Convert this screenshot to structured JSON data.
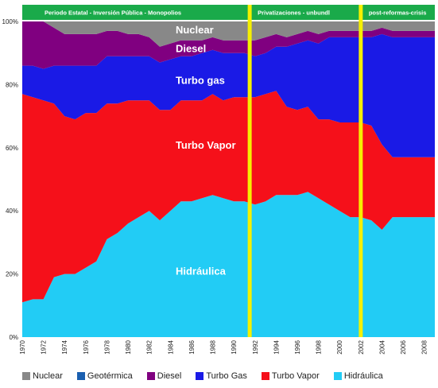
{
  "chart_data": {
    "type": "area",
    "stacked": true,
    "x": [
      1970,
      1971,
      1972,
      1973,
      1974,
      1975,
      1976,
      1977,
      1978,
      1979,
      1980,
      1981,
      1982,
      1983,
      1984,
      1985,
      1986,
      1987,
      1988,
      1989,
      1990,
      1991,
      1992,
      1993,
      1994,
      1995,
      1996,
      1997,
      1998,
      1999,
      2000,
      2001,
      2002,
      2003,
      2004,
      2005,
      2006,
      2007,
      2008,
      2009
    ],
    "x_tick_labels": [
      "1970",
      "1972",
      "1974",
      "1976",
      "1978",
      "1980",
      "1982",
      "1984",
      "1986",
      "1988",
      "1990",
      "1992",
      "1994",
      "1996",
      "1998",
      "2000",
      "2002",
      "2004",
      "2006",
      "2008"
    ],
    "x_tick_values": [
      1970,
      1972,
      1974,
      1976,
      1978,
      1980,
      1982,
      1984,
      1986,
      1988,
      1990,
      1992,
      1994,
      1996,
      1998,
      2000,
      2002,
      2004,
      2006,
      2008
    ],
    "xlim": [
      1970,
      2009
    ],
    "ylim": [
      0,
      100
    ],
    "y_tick_labels": [
      "0%",
      "20%",
      "40%",
      "60%",
      "80%",
      "100%"
    ],
    "y_tick_values": [
      0,
      20,
      40,
      60,
      80,
      100
    ],
    "series": [
      {
        "name": "Hidráulica",
        "color": "#22ccf5",
        "values": [
          11,
          12,
          12,
          19,
          20,
          20,
          22,
          24,
          31,
          33,
          36,
          38,
          40,
          37,
          40,
          43,
          43,
          44,
          45,
          44,
          43,
          43,
          42,
          43,
          45,
          45,
          45,
          46,
          44,
          42,
          40,
          38,
          38,
          37,
          34,
          38,
          38,
          38,
          38,
          38
        ]
      },
      {
        "name": "Turbo Vapor",
        "color": "#f5101a",
        "values": [
          66,
          64,
          63,
          55,
          50,
          49,
          49,
          47,
          43,
          41,
          39,
          37,
          35,
          35,
          32,
          32,
          32,
          31,
          32,
          31,
          33,
          33,
          34,
          34,
          33,
          28,
          27,
          27,
          25,
          27,
          28,
          30,
          30,
          30,
          27,
          19,
          19,
          19,
          19,
          19
        ]
      },
      {
        "name": "Turbo Gas",
        "color": "#1a1ae6",
        "values": [
          9,
          10,
          10,
          12,
          16,
          17,
          15,
          15,
          15,
          15,
          14,
          14,
          14,
          15,
          16,
          14,
          14,
          15,
          14,
          15,
          14,
          14,
          13,
          13,
          14,
          19,
          21,
          21,
          24,
          26,
          27,
          27,
          27,
          28,
          35,
          38,
          38,
          38,
          38,
          38
        ]
      },
      {
        "name": "Diesel",
        "color": "#800080",
        "values": [
          14,
          14,
          15,
          12,
          10,
          10,
          10,
          10,
          8,
          8,
          7,
          7,
          6,
          5,
          5,
          5,
          5,
          4,
          4,
          4,
          4,
          4,
          5,
          5,
          4,
          3,
          3,
          3,
          3,
          2,
          2,
          2,
          2,
          2,
          2,
          2,
          2,
          2,
          2,
          2
        ]
      },
      {
        "name": "Geotérmica",
        "color": "#1a5fb0",
        "values": [
          0,
          0,
          0,
          0,
          0,
          0,
          0,
          0,
          0,
          0,
          0,
          0,
          0,
          0,
          0,
          0,
          0,
          0,
          0,
          0,
          0,
          0,
          0,
          0,
          0,
          0,
          0,
          0,
          0,
          0,
          0,
          0,
          0,
          0,
          0,
          0,
          0,
          0,
          0,
          0
        ]
      },
      {
        "name": "Nuclear",
        "color": "#888888",
        "values": [
          0,
          0,
          0,
          2,
          4,
          4,
          4,
          4,
          3,
          3,
          4,
          4,
          5,
          8,
          7,
          6,
          6,
          6,
          5,
          6,
          6,
          6,
          6,
          5,
          4,
          5,
          4,
          3,
          4,
          3,
          3,
          3,
          3,
          3,
          2,
          3,
          3,
          3,
          3,
          3
        ]
      }
    ],
    "area_labels": [
      {
        "text": "Nuclear",
        "x": 1984.5,
        "y": 97.5
      },
      {
        "text": "Diesel",
        "x": 1984.5,
        "y": 91.5
      },
      {
        "text": "Turbo gas",
        "x": 1984.5,
        "y": 81.5
      },
      {
        "text": "Turbo Vapor",
        "x": 1984.5,
        "y": 61
      },
      {
        "text": "Hidráulica",
        "x": 1984.5,
        "y": 21
      }
    ],
    "periods": [
      {
        "label": "Periodo Estatal - Inversión Pública - Monopolios",
        "start": 1970,
        "end": 1991.5
      },
      {
        "label": "Privatizaciones - unbundl",
        "start": 1991.5,
        "end": 2002
      },
      {
        "label": "post-reformas-crisis",
        "start": 2002,
        "end": 2009
      }
    ],
    "period_color": "#1aaa4a",
    "separators": [
      1991.5,
      2002
    ],
    "separator_color": "#f5f000",
    "grid": false,
    "legend_position": "bottom",
    "legend_order": [
      "Nuclear",
      "Geotérmica",
      "Diesel",
      "Turbo Gas",
      "Turbo Vapor",
      "Hidráulica"
    ],
    "legend_colors": [
      "#888888",
      "#1a5fb0",
      "#800080",
      "#1a1ae6",
      "#f5101a",
      "#22ccf5"
    ]
  }
}
